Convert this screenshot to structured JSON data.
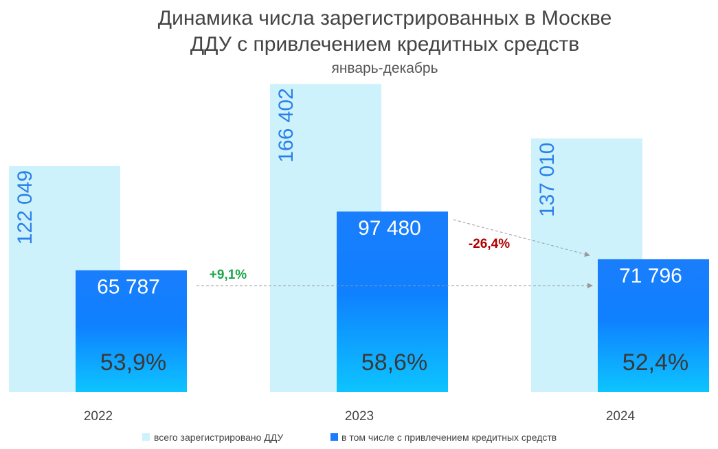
{
  "chart_data": {
    "type": "bar",
    "title": [
      "Динамика числа зарегистрированных в Москве",
      "ДДУ с привлечением кредитных средств"
    ],
    "subtitle": "январь-декабрь",
    "categories": [
      "2022",
      "2023",
      "2024"
    ],
    "series": [
      {
        "name": "всего зарегистрировано ДДУ",
        "values": [
          122049,
          166402,
          137010
        ],
        "labels": [
          "122 049",
          "166 402",
          "137 010"
        ],
        "color": "#cdf2fc"
      },
      {
        "name": "в том числе с привлечением кредитных средств",
        "values": [
          65787,
          97480,
          71796
        ],
        "labels": [
          "65 787",
          "97 480",
          "71 796"
        ],
        "shares": [
          "53,9%",
          "58,6%",
          "52,4%"
        ],
        "color": "#1a7efc"
      }
    ],
    "annotations": [
      {
        "text": "+9,1%",
        "from": "2022",
        "to": "2024",
        "color": "#1aa64a"
      },
      {
        "text": "-26,4%",
        "from": "2023",
        "to": "2024",
        "color": "#b00000"
      }
    ],
    "legend": "bottom",
    "grid": false
  }
}
